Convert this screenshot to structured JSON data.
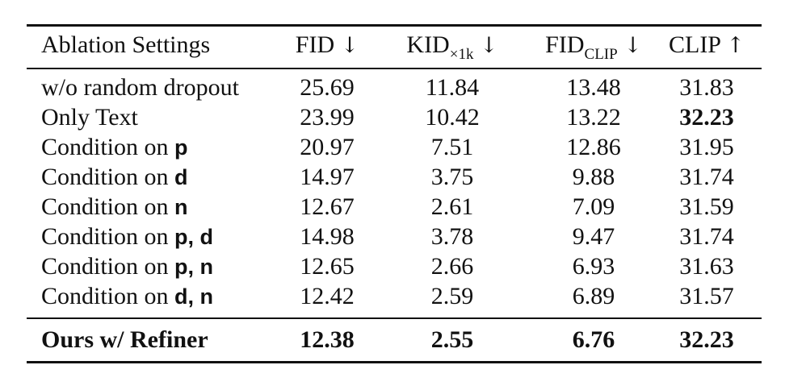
{
  "table": {
    "header": {
      "ablation": "Ablation Settings",
      "fid": "FID",
      "kid": "KID",
      "kid_sub": "×1k",
      "fid_clip": "FID",
      "fid_clip_sub": "CLIP",
      "clip": "CLIP",
      "arrow_down": "↓",
      "arrow_up": "↑"
    },
    "rows": [
      {
        "label": "w/o random dropout",
        "sym": "",
        "fid": "25.69",
        "kid": "11.84",
        "fid_clip": "13.48",
        "clip": "31.83"
      },
      {
        "label": "Only Text",
        "sym": "",
        "fid": "23.99",
        "kid": "10.42",
        "fid_clip": "13.22",
        "clip": "32.23",
        "clip_bold": true
      },
      {
        "label": "Condition on ",
        "sym": "p",
        "fid": "20.97",
        "kid": "7.51",
        "fid_clip": "12.86",
        "clip": "31.95"
      },
      {
        "label": "Condition on ",
        "sym": "d",
        "fid": "14.97",
        "kid": "3.75",
        "fid_clip": "9.88",
        "clip": "31.74"
      },
      {
        "label": "Condition on ",
        "sym": "n",
        "fid": "12.67",
        "kid": "2.61",
        "fid_clip": "7.09",
        "clip": "31.59"
      },
      {
        "label": "Condition on ",
        "sym": "p, d",
        "fid": "14.98",
        "kid": "3.78",
        "fid_clip": "9.47",
        "clip": "31.74"
      },
      {
        "label": "Condition on ",
        "sym": "p, n",
        "fid": "12.65",
        "kid": "2.66",
        "fid_clip": "6.93",
        "clip": "31.63"
      },
      {
        "label": "Condition on ",
        "sym": "d, n",
        "fid": "12.42",
        "kid": "2.59",
        "fid_clip": "6.89",
        "clip": "31.57"
      }
    ],
    "final": {
      "label": "Ours w/ Refiner",
      "fid": "12.38",
      "kid": "2.55",
      "fid_clip": "6.76",
      "clip": "32.23"
    }
  }
}
